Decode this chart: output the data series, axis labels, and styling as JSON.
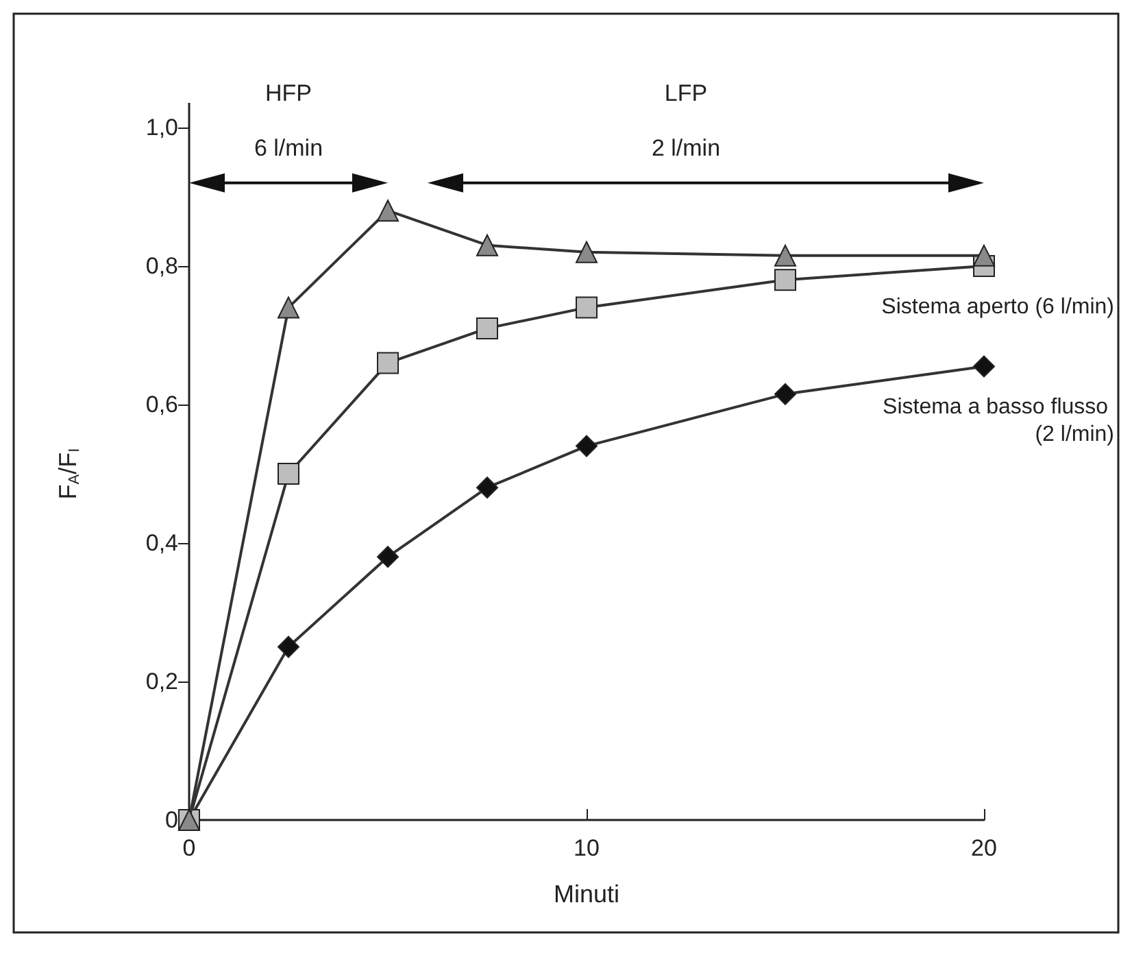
{
  "chart_data": {
    "type": "line",
    "xlabel": "Minuti",
    "ylabel": "F$_{A}$/F$_{I}$",
    "x": [
      0,
      2.5,
      5,
      7.5,
      10,
      15,
      20
    ],
    "series": [
      {
        "color": "#8a8a8a",
        "marker": "triangle",
        "values": [
          0,
          0.74,
          0.88,
          0.83,
          0.82,
          0.815,
          0.815
        ]
      },
      {
        "name": "Sistema aperto (6 l/min)",
        "color": "#bdbdbd",
        "marker": "square",
        "values": [
          0,
          0.5,
          0.66,
          0.71,
          0.74,
          0.78,
          0.8
        ]
      },
      {
        "name": "Sistema a basso flusso (2 l/min)",
        "color": "#111111",
        "marker": "diamond",
        "values": [
          0,
          0.25,
          0.38,
          0.48,
          0.54,
          0.615,
          0.655
        ]
      }
    ],
    "xlim": [
      0,
      20
    ],
    "xticks": [
      0,
      10,
      20
    ],
    "ylim": [
      0,
      1
    ],
    "yticks": [
      0,
      {
        "value": 0.2,
        "label": "0,2"
      },
      {
        "value": 0.4,
        "label": "0,4"
      },
      {
        "value": 0.6,
        "label": "0,6"
      },
      {
        "value": 0.8,
        "label": "0,8"
      },
      {
        "value": 1,
        "label": "1,0"
      }
    ],
    "annotations": [
      "HFP",
      "6 l/min",
      "LFP",
      "2 l/min"
    ],
    "grid": false,
    "legend": false,
    "line_style": "solid"
  }
}
